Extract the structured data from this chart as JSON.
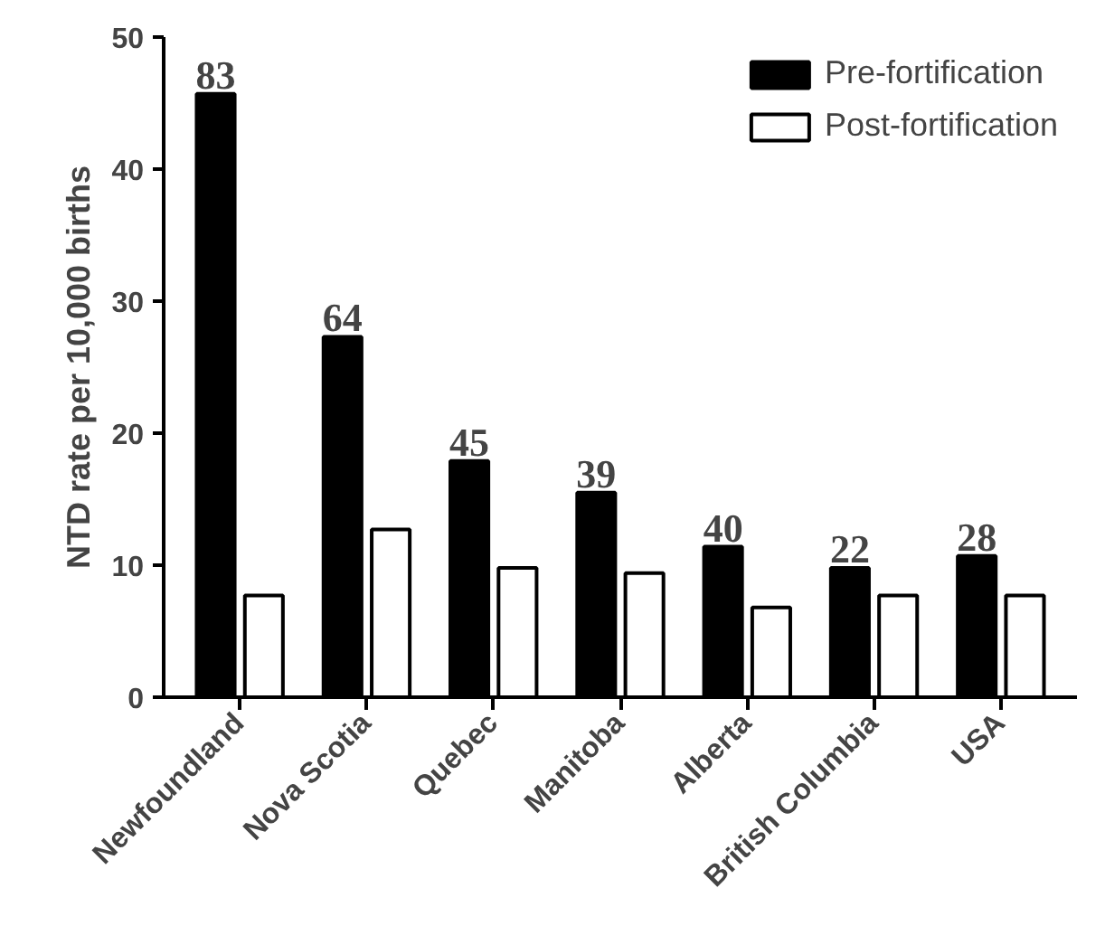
{
  "chart_data": {
    "type": "bar",
    "ylabel": "NTD rate per 10,000 births",
    "categories": [
      "Newfoundland",
      "Nova Scotia",
      "Quebec",
      "Manitoba",
      "Alberta",
      "British Columbia",
      "USA"
    ],
    "series": [
      {
        "name": "Pre-fortification",
        "color": "#000000",
        "values": [
          45.7,
          27.3,
          17.9,
          15.5,
          11.4,
          9.8,
          10.7
        ]
      },
      {
        "name": "Post-fortification",
        "color": "#000000",
        "values": [
          7.7,
          12.7,
          9.8,
          9.4,
          6.8,
          7.7,
          7.7
        ]
      }
    ],
    "annotations": [
      {
        "text": "83",
        "x": "Newfoundland",
        "y": 45.7
      },
      {
        "text": "64",
        "x": "Nova Scotia",
        "y": 27.3
      },
      {
        "text": "45",
        "x": "Quebec",
        "y": 17.9
      },
      {
        "text": "39",
        "x": "Manitoba",
        "y": 15.5
      },
      {
        "text": "40",
        "x": "Alberta",
        "y": 11.4
      },
      {
        "text": "22",
        "x": "British Columbia",
        "y": 9.8
      },
      {
        "text": "28",
        "x": "USA",
        "y": 10.7
      }
    ],
    "ylim": [
      0,
      50
    ],
    "yticks": [
      0,
      10,
      20,
      30,
      40,
      50
    ],
    "grid": false,
    "legend": "top right"
  }
}
